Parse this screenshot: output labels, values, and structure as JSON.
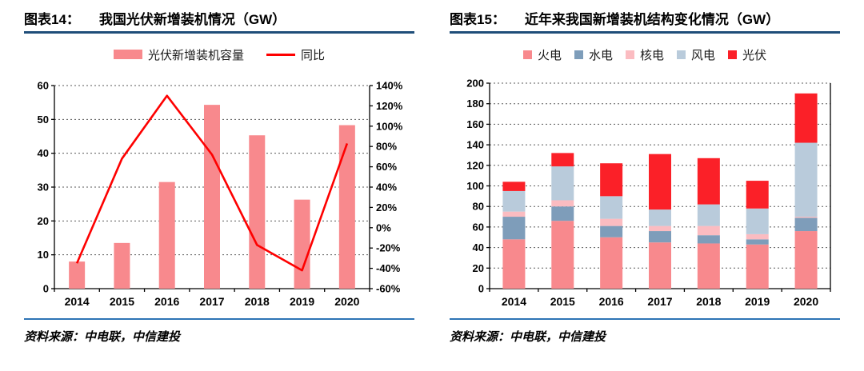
{
  "panels": [
    {
      "title_label": "图表14：",
      "title": "我国光伏新增装机情况（GW）",
      "source": "资料来源：中电联，中信建投"
    },
    {
      "title_label": "图表15：",
      "title": "近年来我国新增装机结构变化情况（GW）",
      "source": "资料来源：中电联，中信建投"
    }
  ],
  "chart_data": [
    {
      "type": "bar",
      "combo": "bar+line-dual-axis",
      "title": "图表14： 我国光伏新增装机情况（GW）",
      "categories": [
        "2014",
        "2015",
        "2016",
        "2017",
        "2018",
        "2019",
        "2020"
      ],
      "series": [
        {
          "name": "光伏新增装机容量",
          "type": "bar",
          "axis": "left",
          "color": "#F8898D",
          "values": [
            8,
            13.5,
            31.5,
            54.3,
            45.3,
            26.3,
            48.3
          ]
        },
        {
          "name": "同比",
          "type": "line",
          "axis": "right",
          "color": "#FE0000",
          "values": [
            -35,
            68,
            130,
            72,
            -17,
            -42,
            83
          ]
        }
      ],
      "left_axis": {
        "min": 0,
        "max": 60,
        "step": 10,
        "suffix": ""
      },
      "right_axis": {
        "min": -60,
        "max": 140,
        "step": 20,
        "suffix": "%"
      },
      "legend_position": "top",
      "grid": "horizontal-dashed"
    },
    {
      "type": "bar",
      "stacked": true,
      "title": "图表15： 近年来我国新增装机结构变化情况（GW）",
      "categories": [
        "2014",
        "2015",
        "2016",
        "2017",
        "2018",
        "2019",
        "2020"
      ],
      "series": [
        {
          "name": "火电",
          "color": "#F8898D",
          "values": [
            48,
            66,
            50,
            45,
            44,
            43,
            56
          ]
        },
        {
          "name": "水电",
          "color": "#7E9DBA",
          "values": [
            22,
            14,
            11,
            11,
            8,
            5,
            13
          ]
        },
        {
          "name": "核电",
          "color": "#FBBCC1",
          "values": [
            5,
            6,
            7,
            5,
            9,
            5,
            1
          ]
        },
        {
          "name": "风电",
          "color": "#B9CBDB",
          "values": [
            20,
            33,
            22,
            16,
            21,
            25,
            72
          ]
        },
        {
          "name": "光伏",
          "color": "#FB2028",
          "values": [
            9,
            13,
            32,
            54,
            45,
            27,
            48
          ]
        }
      ],
      "y_axis": {
        "min": 0,
        "max": 200,
        "step": 20,
        "suffix": ""
      },
      "legend_position": "top",
      "grid": "horizontal-dashed"
    }
  ]
}
